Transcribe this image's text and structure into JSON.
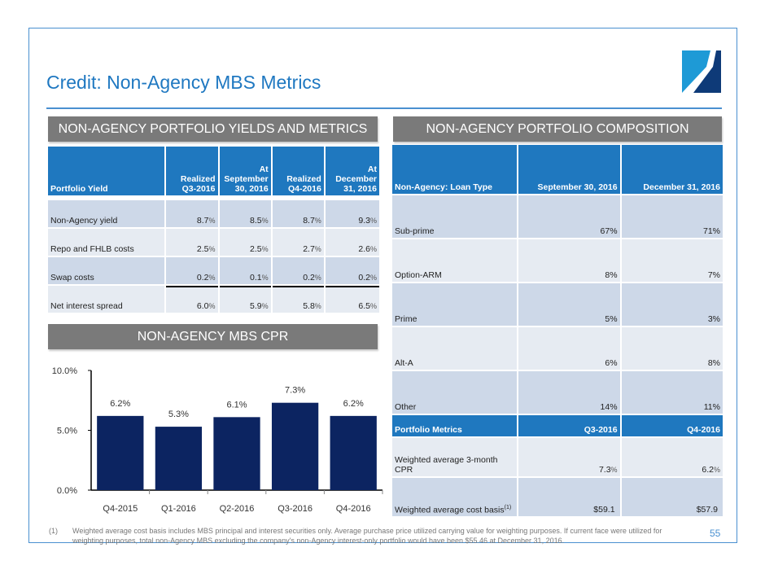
{
  "page": {
    "title": "Credit: Non-Agency MBS Metrics",
    "page_number": "55",
    "logo_icon": "company-logo",
    "colors": {
      "accent_blue": "#1f78c1",
      "header_blue": "#1f78bf",
      "section_gray": "#7a7a7a",
      "bar_navy": "#0c2461",
      "row_dark": "#cdd8e8",
      "row_light": "#e6ebf2"
    }
  },
  "yields": {
    "section_title": "NON-AGENCY PORTFOLIO YIELDS AND METRICS",
    "headers": [
      "Portfolio Yield",
      "Realized Q3-2016",
      "At September 30, 2016",
      "Realized Q4-2016",
      "At December 31, 2016"
    ],
    "rows": [
      {
        "label": "Non-Agency yield",
        "values": [
          "8.7",
          "8.5",
          "8.7",
          "9.3"
        ]
      },
      {
        "label": "Repo and FHLB costs",
        "values": [
          "2.5",
          "2.5",
          "2.7",
          "2.6"
        ]
      },
      {
        "label": "Swap costs",
        "values": [
          "0.2",
          "0.1",
          "0.2",
          "0.2"
        ]
      },
      {
        "label": "Net interest spread",
        "values": [
          "6.0",
          "5.9",
          "5.8",
          "6.5"
        ]
      }
    ],
    "unit": "%"
  },
  "composition": {
    "section_title": "NON-AGENCY PORTFOLIO COMPOSITION",
    "headers": [
      "Non-Agency: Loan Type",
      "September 30, 2016",
      "December 31, 2016"
    ],
    "rows": [
      {
        "label": "Sub-prime",
        "values": [
          "67%",
          "71%"
        ]
      },
      {
        "label": "Option-ARM",
        "values": [
          "8%",
          "7%"
        ]
      },
      {
        "label": "Prime",
        "values": [
          "5%",
          "3%"
        ]
      },
      {
        "label": "Alt-A",
        "values": [
          "6%",
          "8%"
        ]
      },
      {
        "label": "Other",
        "values": [
          "14%",
          "11%"
        ]
      }
    ],
    "metrics_headers": [
      "Portfolio Metrics",
      "Q3-2016",
      "Q4-2016"
    ],
    "metrics_rows": [
      {
        "label": "Weighted average 3-month CPR",
        "values": [
          "7.3",
          "6.2"
        ],
        "unit": "%"
      },
      {
        "label": "Weighted average cost basis",
        "superscript": "(1)",
        "values": [
          "$59.1",
          "$57.9"
        ]
      }
    ]
  },
  "cpr": {
    "section_title": "NON-AGENCY MBS CPR"
  },
  "chart_data": {
    "type": "bar",
    "title": "NON-AGENCY MBS CPR",
    "categories": [
      "Q4-2015",
      "Q1-2016",
      "Q2-2016",
      "Q3-2016",
      "Q4-2016"
    ],
    "values": [
      6.2,
      5.3,
      6.1,
      7.3,
      6.2
    ],
    "data_labels": [
      "6.2%",
      "5.3%",
      "6.1%",
      "7.3%",
      "6.2%"
    ],
    "ylim": [
      0,
      10
    ],
    "yticks": [
      0,
      5,
      10
    ],
    "ytick_labels": [
      "0.0%",
      "5.0%",
      "10.0%"
    ],
    "xlabel": "",
    "ylabel": "",
    "grid": false,
    "legend": "none"
  },
  "footnote": {
    "marker": "(1)",
    "text": "Weighted average cost basis includes MBS principal and interest securities only.  Average purchase price utilized carrying value for weighting purposes.  If current face were utilized for weighting purposes, total non-Agency MBS excluding the company's non-Agency interest-only portfolio would have been $55.46 at December 31, 2016."
  }
}
